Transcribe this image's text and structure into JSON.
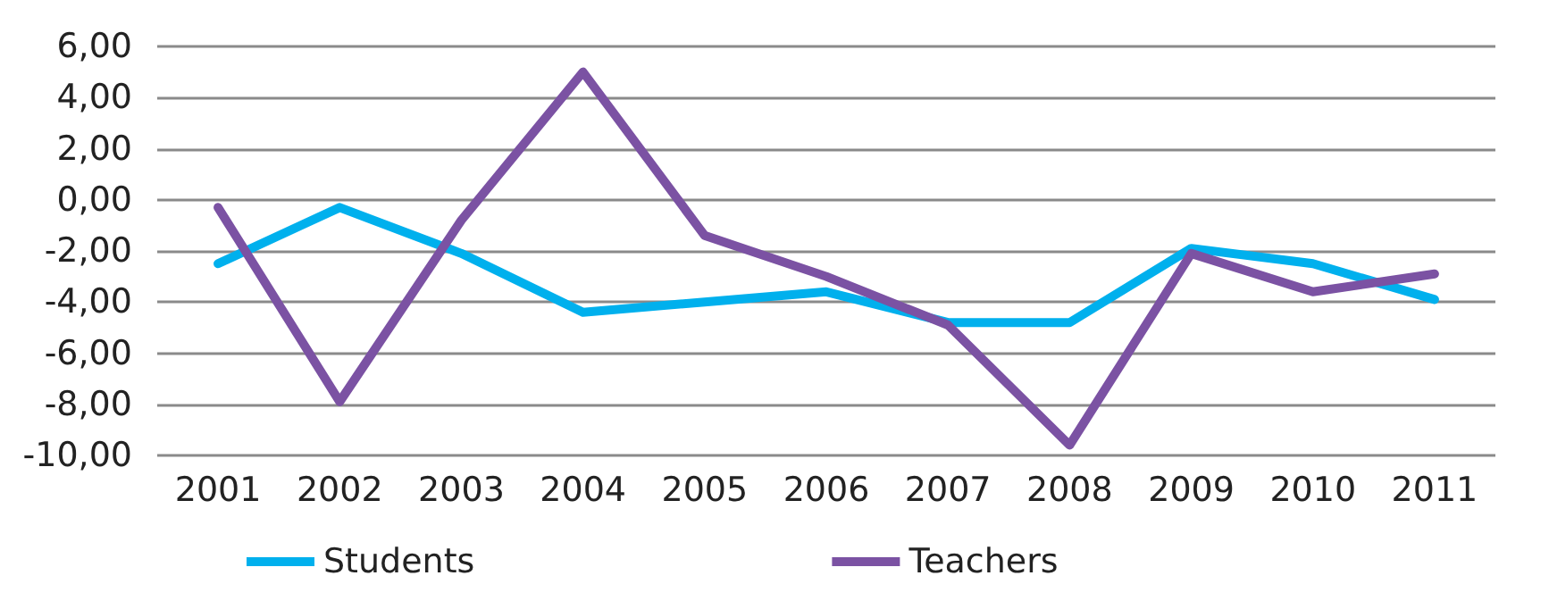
{
  "chart_data": {
    "type": "line",
    "categories": [
      "2001",
      "2002",
      "2003",
      "2004",
      "2005",
      "2006",
      "2007",
      "2008",
      "2009",
      "2010",
      "2011"
    ],
    "series": [
      {
        "name": "Students",
        "color": "#00b0ed",
        "values": [
          -2.5,
          -0.3,
          -2.1,
          -4.4,
          -4.0,
          -3.6,
          -4.8,
          -4.8,
          -1.9,
          -2.5,
          -3.9
        ]
      },
      {
        "name": "Teachers",
        "color": "#7b52a3",
        "values": [
          -0.3,
          -7.9,
          -0.8,
          5.0,
          -1.4,
          -3.0,
          -4.9,
          -9.6,
          -2.1,
          -3.6,
          -2.9
        ]
      }
    ],
    "ylim": [
      -10,
      6
    ],
    "yticks": [
      {
        "value": -10,
        "label": "-10,00"
      },
      {
        "value": -8,
        "label": "-8,00"
      },
      {
        "value": -6,
        "label": "-6,00"
      },
      {
        "value": -4,
        "label": "-4,00"
      },
      {
        "value": -2,
        "label": "-2,00"
      },
      {
        "value": 0,
        "label": "0,00"
      },
      {
        "value": 2,
        "label": "2,00"
      },
      {
        "value": 4,
        "label": "4,00"
      },
      {
        "value": 6,
        "label": "6,00"
      }
    ],
    "grid": "y",
    "legend": "bottom",
    "marker": "none",
    "line_style": "solid"
  }
}
